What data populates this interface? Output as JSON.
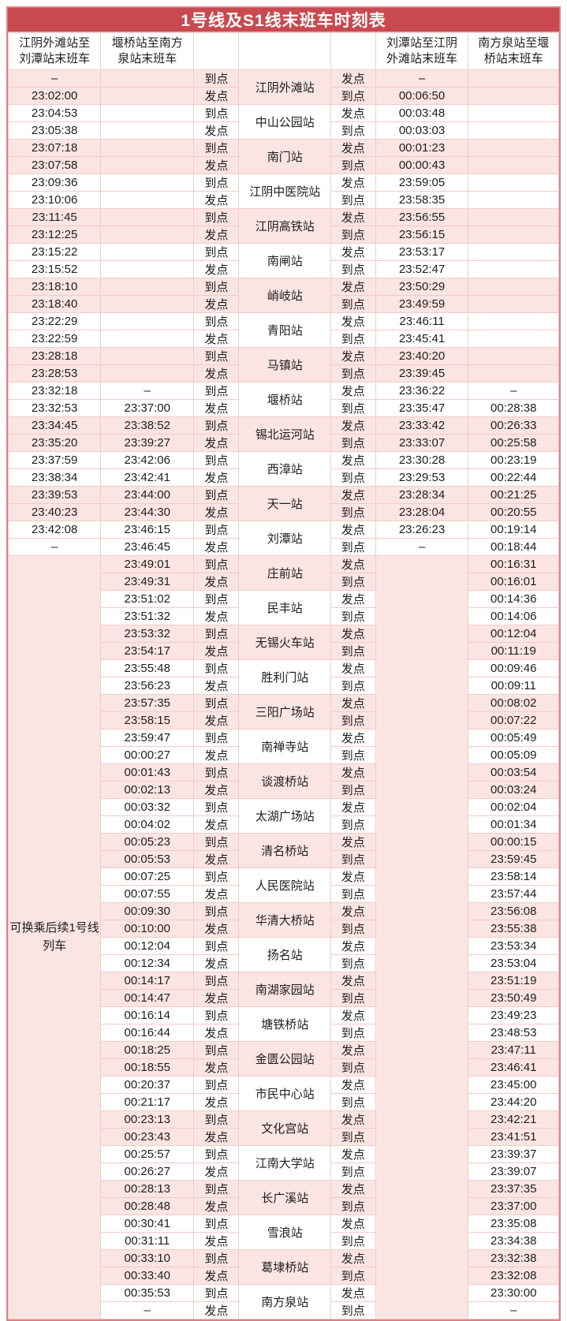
{
  "title": "1号线及S1线末班车时刻表",
  "headers": [
    "江阴外滩站至刘潭站末班车",
    "堰桥站至南方泉站末班车",
    "",
    "",
    "",
    "刘潭站至江阴外滩站末班车",
    "南方泉站至堰桥站末班车"
  ],
  "labels": {
    "arrive": "到点",
    "depart": "发点",
    "transfer_note": "可换乘后续1号线列车"
  },
  "colors": {
    "title_bg": "#c8494f",
    "title_text": "#ffffff",
    "row_pink": "#fbe5e3",
    "row_white": "#ffffff",
    "grid_line": "#f2cbc8",
    "outer_border": "#d98186",
    "text": "#1d1d1d"
  },
  "layout": {
    "merge_start": 14
  },
  "stations": [
    {
      "name": "江阴外滩站",
      "band": "pink",
      "c1": [
        "–",
        "23:02:00"
      ],
      "c2": [
        "",
        ""
      ],
      "c6": [
        "–",
        "00:06:50"
      ],
      "c7": [
        "",
        ""
      ]
    },
    {
      "name": "中山公园站",
      "band": "white",
      "c1": [
        "23:04:53",
        "23:05:38"
      ],
      "c2": [
        "",
        ""
      ],
      "c6": [
        "00:03:48",
        "00:03:03"
      ],
      "c7": [
        "",
        ""
      ]
    },
    {
      "name": "南门站",
      "band": "pink",
      "c1": [
        "23:07:18",
        "23:07:58"
      ],
      "c2": [
        "",
        ""
      ],
      "c6": [
        "00:01:23",
        "00:00:43"
      ],
      "c7": [
        "",
        ""
      ]
    },
    {
      "name": "江阴中医院站",
      "band": "white",
      "c1": [
        "23:09:36",
        "23:10:06"
      ],
      "c2": [
        "",
        ""
      ],
      "c6": [
        "23:59:05",
        "23:58:35"
      ],
      "c7": [
        "",
        ""
      ]
    },
    {
      "name": "江阴高铁站",
      "band": "pink",
      "c1": [
        "23:11:45",
        "23:12:25"
      ],
      "c2": [
        "",
        ""
      ],
      "c6": [
        "23:56:55",
        "23:56:15"
      ],
      "c7": [
        "",
        ""
      ]
    },
    {
      "name": "南闸站",
      "band": "white",
      "c1": [
        "23:15:22",
        "23:15:52"
      ],
      "c2": [
        "",
        ""
      ],
      "c6": [
        "23:53:17",
        "23:52:47"
      ],
      "c7": [
        "",
        ""
      ]
    },
    {
      "name": "峭岐站",
      "band": "pink",
      "c1": [
        "23:18:10",
        "23:18:40"
      ],
      "c2": [
        "",
        ""
      ],
      "c6": [
        "23:50:29",
        "23:49:59"
      ],
      "c7": [
        "",
        ""
      ]
    },
    {
      "name": "青阳站",
      "band": "white",
      "c1": [
        "23:22:29",
        "23:22:59"
      ],
      "c2": [
        "",
        ""
      ],
      "c6": [
        "23:46:11",
        "23:45:41"
      ],
      "c7": [
        "",
        ""
      ]
    },
    {
      "name": "马镇站",
      "band": "pink",
      "c1": [
        "23:28:18",
        "23:28:53"
      ],
      "c2": [
        "",
        ""
      ],
      "c6": [
        "23:40:20",
        "23:39:45"
      ],
      "c7": [
        "",
        ""
      ]
    },
    {
      "name": "堰桥站",
      "band": "white",
      "c1": [
        "23:32:18",
        "23:32:53"
      ],
      "c2": [
        "–",
        "23:37:00"
      ],
      "c6": [
        "23:36:22",
        "23:35:47"
      ],
      "c7": [
        "–",
        "00:28:38"
      ]
    },
    {
      "name": "锡北运河站",
      "band": "pink",
      "c1": [
        "23:34:45",
        "23:35:20"
      ],
      "c2": [
        "23:38:52",
        "23:39:27"
      ],
      "c6": [
        "23:33:42",
        "23:33:07"
      ],
      "c7": [
        "00:26:33",
        "00:25:58"
      ]
    },
    {
      "name": "西漳站",
      "band": "white",
      "c1": [
        "23:37:59",
        "23:38:34"
      ],
      "c2": [
        "23:42:06",
        "23:42:41"
      ],
      "c6": [
        "23:30:28",
        "23:29:53"
      ],
      "c7": [
        "00:23:19",
        "00:22:44"
      ]
    },
    {
      "name": "天一站",
      "band": "pink",
      "c1": [
        "23:39:53",
        "23:40:23"
      ],
      "c2": [
        "23:44:00",
        "23:44:30"
      ],
      "c6": [
        "23:28:34",
        "23:28:04"
      ],
      "c7": [
        "00:21:25",
        "00:20:55"
      ]
    },
    {
      "name": "刘潭站",
      "band": "white",
      "c1": [
        "23:42:08",
        "–"
      ],
      "c2": [
        "23:46:15",
        "23:46:45"
      ],
      "c6": [
        "23:26:23",
        "–"
      ],
      "c7": [
        "00:19:14",
        "00:18:44"
      ]
    },
    {
      "name": "庄前站",
      "band": "pink",
      "c2": [
        "23:49:01",
        "23:49:31"
      ],
      "c7": [
        "00:16:31",
        "00:16:01"
      ]
    },
    {
      "name": "民丰站",
      "band": "white",
      "c2": [
        "23:51:02",
        "23:51:32"
      ],
      "c7": [
        "00:14:36",
        "00:14:06"
      ]
    },
    {
      "name": "无锡火车站",
      "band": "pink",
      "c2": [
        "23:53:32",
        "23:54:17"
      ],
      "c7": [
        "00:12:04",
        "00:11:19"
      ]
    },
    {
      "name": "胜利门站",
      "band": "white",
      "c2": [
        "23:55:48",
        "23:56:23"
      ],
      "c7": [
        "00:09:46",
        "00:09:11"
      ]
    },
    {
      "name": "三阳广场站",
      "band": "pink",
      "c2": [
        "23:57:35",
        "23:58:15"
      ],
      "c7": [
        "00:08:02",
        "00:07:22"
      ]
    },
    {
      "name": "南禅寺站",
      "band": "white",
      "c2": [
        "23:59:47",
        "00:00:27"
      ],
      "c7": [
        "00:05:49",
        "00:05:09"
      ]
    },
    {
      "name": "谈渡桥站",
      "band": "pink",
      "c2": [
        "00:01:43",
        "00:02:13"
      ],
      "c7": [
        "00:03:54",
        "00:03:24"
      ]
    },
    {
      "name": "太湖广场站",
      "band": "white",
      "c2": [
        "00:03:32",
        "00:04:02"
      ],
      "c7": [
        "00:02:04",
        "00:01:34"
      ]
    },
    {
      "name": "清名桥站",
      "band": "pink",
      "c2": [
        "00:05:23",
        "00:05:53"
      ],
      "c7": [
        "00:00:15",
        "23:59:45"
      ]
    },
    {
      "name": "人民医院站",
      "band": "white",
      "c2": [
        "00:07:25",
        "00:07:55"
      ],
      "c7": [
        "23:58:14",
        "23:57:44"
      ]
    },
    {
      "name": "华清大桥站",
      "band": "pink",
      "c2": [
        "00:09:30",
        "00:10:00"
      ],
      "c7": [
        "23:56:08",
        "23:55:38"
      ]
    },
    {
      "name": "扬名站",
      "band": "white",
      "c2": [
        "00:12:04",
        "00:12:34"
      ],
      "c7": [
        "23:53:34",
        "23:53:04"
      ]
    },
    {
      "name": "南湖家园站",
      "band": "pink",
      "c2": [
        "00:14:17",
        "00:14:47"
      ],
      "c7": [
        "23:51:19",
        "23:50:49"
      ]
    },
    {
      "name": "塘铁桥站",
      "band": "white",
      "c2": [
        "00:16:14",
        "00:16:44"
      ],
      "c7": [
        "23:49:23",
        "23:48:53"
      ]
    },
    {
      "name": "金匮公园站",
      "band": "pink",
      "c2": [
        "00:18:25",
        "00:18:55"
      ],
      "c7": [
        "23:47:11",
        "23:46:41"
      ]
    },
    {
      "name": "市民中心站",
      "band": "white",
      "c2": [
        "00:20:37",
        "00:21:17"
      ],
      "c7": [
        "23:45:00",
        "23:44:20"
      ]
    },
    {
      "name": "文化宫站",
      "band": "pink",
      "c2": [
        "00:23:13",
        "00:23:43"
      ],
      "c7": [
        "23:42:21",
        "23:41:51"
      ]
    },
    {
      "name": "江南大学站",
      "band": "white",
      "c2": [
        "00:25:57",
        "00:26:27"
      ],
      "c7": [
        "23:39:37",
        "23:39:07"
      ]
    },
    {
      "name": "长广溪站",
      "band": "pink",
      "c2": [
        "00:28:13",
        "00:28:48"
      ],
      "c7": [
        "23:37:35",
        "23:37:00"
      ]
    },
    {
      "name": "雪浪站",
      "band": "white",
      "c2": [
        "00:30:41",
        "00:31:11"
      ],
      "c7": [
        "23:35:08",
        "23:34:38"
      ]
    },
    {
      "name": "葛埭桥站",
      "band": "pink",
      "c2": [
        "00:33:10",
        "00:33:40"
      ],
      "c7": [
        "23:32:38",
        "23:32:08"
      ]
    },
    {
      "name": "南方泉站",
      "band": "white",
      "c2": [
        "00:35:53",
        "–"
      ],
      "c7": [
        "23:30:00",
        "–"
      ]
    }
  ]
}
